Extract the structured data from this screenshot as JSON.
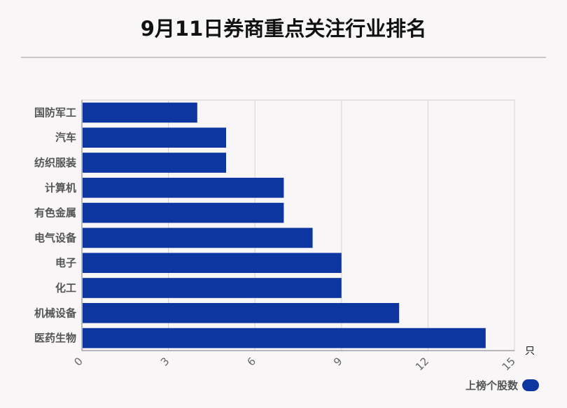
{
  "chart_data": {
    "type": "bar",
    "orientation": "horizontal",
    "title": "9月11日券商重点关注行业排名",
    "categories": [
      "国防军工",
      "汽车",
      "纺织服装",
      "计算机",
      "有色金属",
      "电气设备",
      "电子",
      "化工",
      "机械设备",
      "医药生物"
    ],
    "series": [
      {
        "name": "上榜个股数",
        "values": [
          4,
          5,
          5,
          7,
          7,
          8,
          9,
          9,
          11,
          14
        ],
        "color": "#0d36a0"
      }
    ],
    "xlim": [
      0,
      15
    ],
    "xticks": [
      "0",
      "3",
      "6",
      "9",
      "12",
      "15"
    ],
    "xunit": "只",
    "grid": true,
    "legend_position": "bottom-right"
  }
}
